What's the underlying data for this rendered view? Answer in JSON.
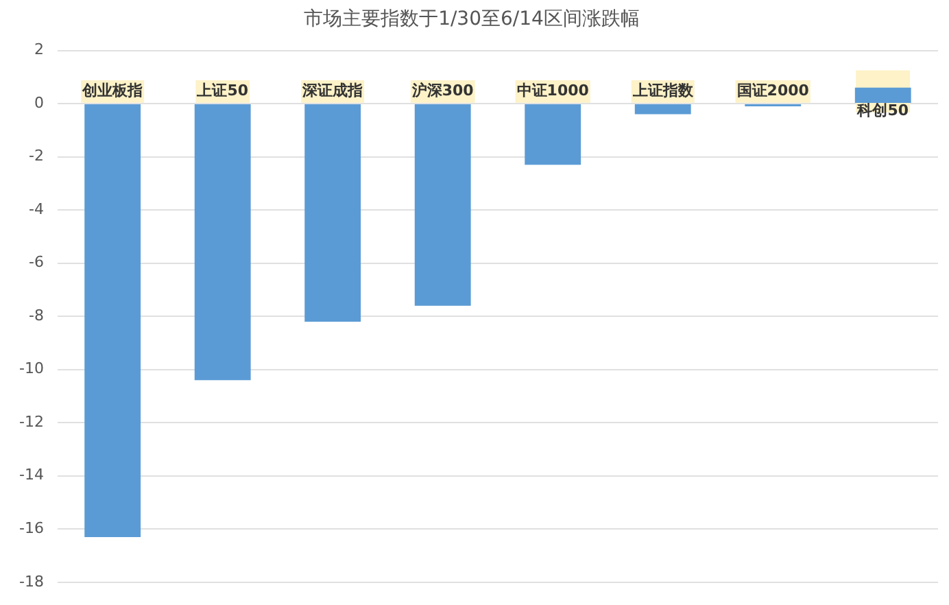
{
  "chart_data": {
    "type": "bar",
    "title": "市场主要指数于1/30至6/14区间涨跌幅",
    "categories": [
      "创业板指",
      "上证50",
      "深证成指",
      "沪深300",
      "中证1000",
      "上证指数",
      "国证2000",
      "科创50"
    ],
    "values": [
      -16.3,
      -10.4,
      -8.2,
      -7.6,
      -2.3,
      -0.4,
      -0.1,
      0.6
    ],
    "color": "#5b9bd5",
    "ylim": [
      -18,
      2
    ],
    "yticks": [
      -18,
      -16,
      -14,
      -12,
      -10,
      -8,
      -6,
      -4,
      -2,
      0,
      2
    ],
    "grid": "y"
  }
}
